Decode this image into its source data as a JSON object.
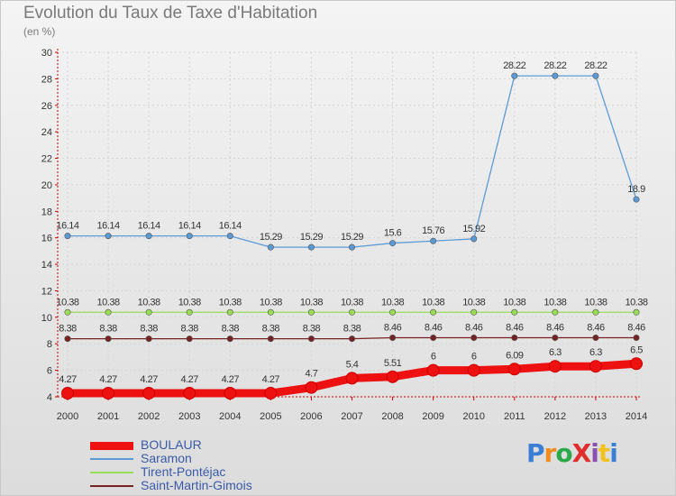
{
  "title": "Evolution du Taux de Taxe d'Habitation",
  "unit_label": "(en %)",
  "logo": {
    "text": "ProXiti",
    "colors": [
      "#3a7fd5",
      "#f28c1e",
      "#2aa84a",
      "#e02d2d",
      "#8b4fb0",
      "#f2c31e",
      "#3a7fd5"
    ]
  },
  "chart_data": {
    "type": "line",
    "x": [
      "2000",
      "2001",
      "2002",
      "2003",
      "2004",
      "2005",
      "2006",
      "2007",
      "2008",
      "2009",
      "2010",
      "2011",
      "2012",
      "2013",
      "2014"
    ],
    "ylim": [
      4,
      30
    ],
    "yticks": [
      4,
      6,
      8,
      10,
      12,
      14,
      16,
      18,
      20,
      22,
      24,
      26,
      28,
      30
    ],
    "grid": true,
    "legend_position": "bottom-left",
    "series": [
      {
        "name": "BOULAUR",
        "color": "#ee1111",
        "emphasis": true,
        "values": [
          4.27,
          4.27,
          4.27,
          4.27,
          4.27,
          4.27,
          4.7,
          5.4,
          5.51,
          6,
          6,
          6.09,
          6.3,
          6.3,
          6.5
        ],
        "labels": [
          "4.27",
          "4.27",
          "4.27",
          "4.27",
          "4.27",
          "4.27",
          "4.7",
          "5.4",
          "5.51",
          "6",
          "6",
          "6.09",
          "6.3",
          "6.3",
          "6.5"
        ]
      },
      {
        "name": "Saramon",
        "color": "#5b9bd5",
        "values": [
          16.14,
          16.14,
          16.14,
          16.14,
          16.14,
          15.29,
          15.29,
          15.29,
          15.6,
          15.76,
          15.92,
          28.22,
          28.22,
          28.22,
          18.9
        ],
        "labels": [
          "16.14",
          "16.14",
          "16.14",
          "16.14",
          "16.14",
          "15.29",
          "15.29",
          "15.29",
          "15.6",
          "15.76",
          "15.92",
          "28.22",
          "28.22",
          "28.22",
          "18.9"
        ]
      },
      {
        "name": "Tirent-Pontéjac",
        "color": "#99dd55",
        "values": [
          10.38,
          10.38,
          10.38,
          10.38,
          10.38,
          10.38,
          10.38,
          10.38,
          10.38,
          10.38,
          10.38,
          10.38,
          10.38,
          10.38,
          10.38
        ],
        "labels": [
          "10.38",
          "10.38",
          "10.38",
          "10.38",
          "10.38",
          "10.38",
          "10.38",
          "10.38",
          "10.38",
          "10.38",
          "10.38",
          "10.38",
          "10.38",
          "10.38",
          "10.38"
        ]
      },
      {
        "name": "Saint-Martin-Gimois",
        "color": "#772222",
        "values": [
          8.38,
          8.38,
          8.38,
          8.38,
          8.38,
          8.38,
          8.38,
          8.38,
          8.46,
          8.46,
          8.46,
          8.46,
          8.46,
          8.46,
          8.46
        ],
        "labels": [
          "8.38",
          "8.38",
          "8.38",
          "8.38",
          "8.38",
          "8.38",
          "8.38",
          "8.38",
          "8.46",
          "8.46",
          "8.46",
          "8.46",
          "8.46",
          "8.46",
          "8.46"
        ]
      }
    ]
  }
}
